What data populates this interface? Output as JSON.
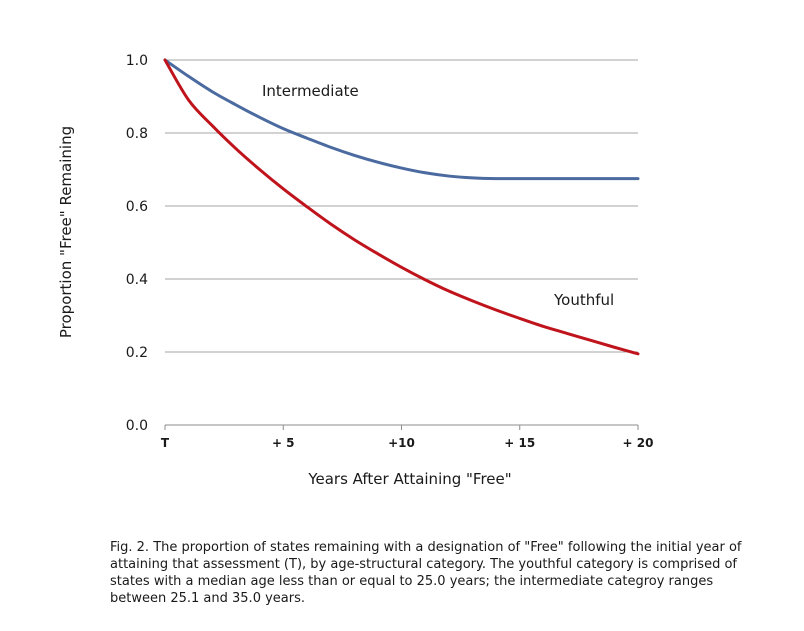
{
  "chart_data": {
    "type": "line",
    "title": "",
    "xlabel": "Years After Attaining \"Free\"",
    "ylabel": "Proportion \"Free\" Remaining",
    "xlim": [
      0,
      20
    ],
    "ylim": [
      0,
      1.0
    ],
    "y_ticks": [
      "0.0",
      "0.2",
      "0.4",
      "0.6",
      "0.8",
      "1.0"
    ],
    "x_ticks": [
      {
        "value": 0,
        "label": "T"
      },
      {
        "value": 5,
        "label": "+ 5"
      },
      {
        "value": 10,
        "label": "+10"
      },
      {
        "value": 15,
        "label": "+ 15"
      },
      {
        "value": 20,
        "label": "+ 20"
      }
    ],
    "grid": "horizontal",
    "series": [
      {
        "name": "Intermediate",
        "color": "#4a6aa0",
        "x": [
          0,
          1,
          2,
          3,
          4,
          5,
          6,
          7,
          8,
          9,
          10,
          11,
          12,
          13,
          14,
          15,
          16,
          17,
          18,
          19,
          20
        ],
        "values": [
          1.0,
          0.955,
          0.913,
          0.877,
          0.843,
          0.812,
          0.786,
          0.761,
          0.739,
          0.72,
          0.704,
          0.691,
          0.682,
          0.677,
          0.675,
          0.675,
          0.675,
          0.675,
          0.675,
          0.675,
          0.675
        ]
      },
      {
        "name": "Youthful",
        "color": "#c0141c",
        "x": [
          0,
          1,
          2,
          3,
          4,
          5,
          6,
          7,
          8,
          9,
          10,
          11,
          12,
          13,
          14,
          15,
          16,
          17,
          18,
          19,
          20
        ],
        "values": [
          1.0,
          0.89,
          0.82,
          0.757,
          0.7,
          0.647,
          0.598,
          0.551,
          0.508,
          0.469,
          0.432,
          0.398,
          0.367,
          0.34,
          0.315,
          0.292,
          0.27,
          0.251,
          0.232,
          0.213,
          0.195
        ]
      }
    ]
  },
  "caption": {
    "lines": [
      "Fig. 2.  The proportion  of states remaining with a designation of \"Free\" following the initial year of",
      "attaining that assessment (T), by age-structural category. The youthful category is comprised of",
      "states with a median age less than or equal to 25.0 years; the intermediate categroy ranges",
      "between 25.1 and 35.0 years."
    ]
  }
}
